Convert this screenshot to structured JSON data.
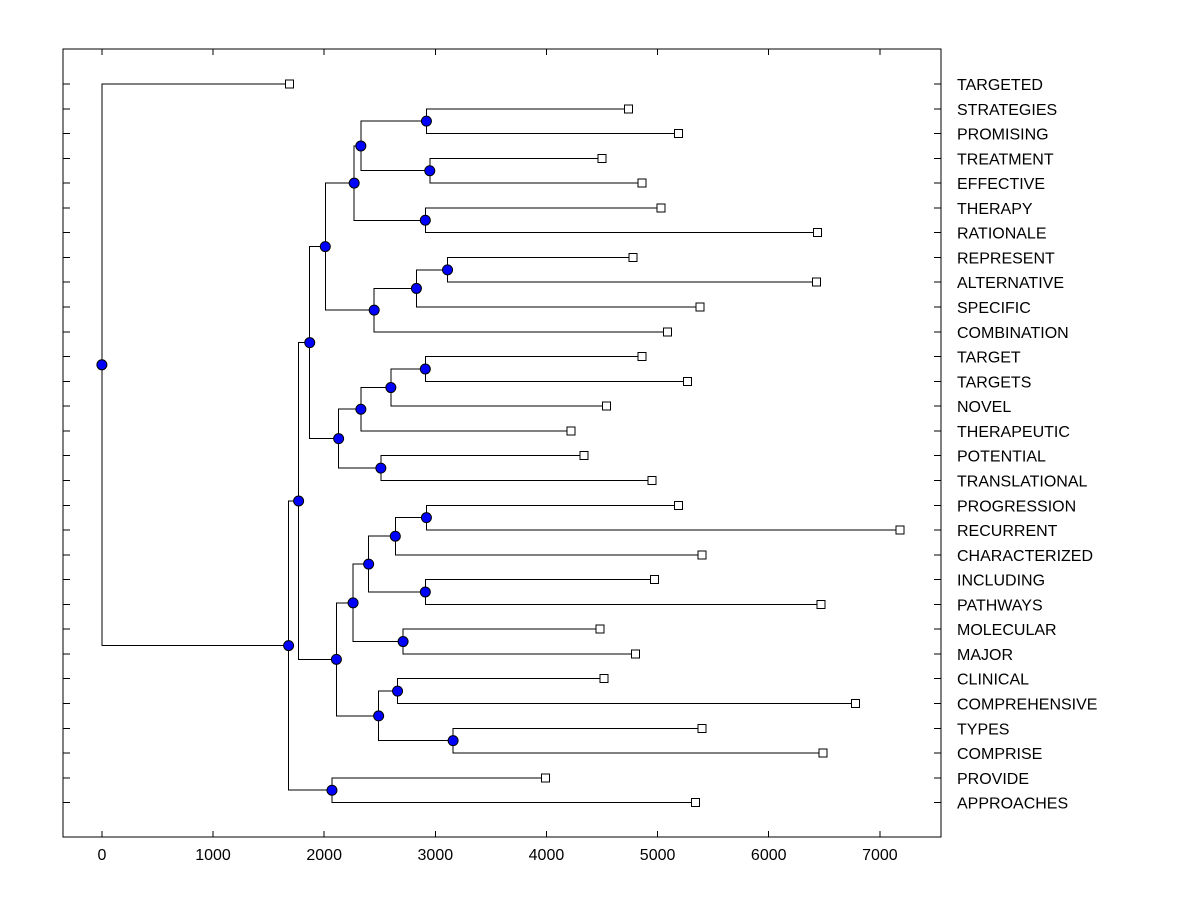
{
  "chart_data": {
    "type": "dendrogram",
    "title": "",
    "xlabel": "",
    "ylabel": "",
    "xlim": [
      -350,
      7550
    ],
    "xticks": [
      0,
      1000,
      2000,
      3000,
      4000,
      5000,
      6000,
      7000
    ],
    "leaves": [
      {
        "label": "TARGETED",
        "x": 1690
      },
      {
        "label": "STRATEGIES",
        "x": 4740
      },
      {
        "label": "PROMISING",
        "x": 5190
      },
      {
        "label": "TREATMENT",
        "x": 4500
      },
      {
        "label": "EFFECTIVE",
        "x": 4860
      },
      {
        "label": "THERAPY",
        "x": 5030
      },
      {
        "label": "RATIONALE",
        "x": 6440
      },
      {
        "label": "REPRESENT",
        "x": 4780
      },
      {
        "label": "ALTERNATIVE",
        "x": 6430
      },
      {
        "label": "SPECIFIC",
        "x": 5380
      },
      {
        "label": "COMBINATION",
        "x": 5090
      },
      {
        "label": "TARGET",
        "x": 4860
      },
      {
        "label": "TARGETS",
        "x": 5270
      },
      {
        "label": "NOVEL",
        "x": 4540
      },
      {
        "label": "THERAPEUTIC",
        "x": 4220
      },
      {
        "label": "POTENTIAL",
        "x": 4340
      },
      {
        "label": "TRANSLATIONAL",
        "x": 4950
      },
      {
        "label": "PROGRESSION",
        "x": 5190
      },
      {
        "label": "RECURRENT",
        "x": 7180
      },
      {
        "label": "CHARACTERIZED",
        "x": 5400
      },
      {
        "label": "INCLUDING",
        "x": 4970
      },
      {
        "label": "PATHWAYS",
        "x": 6470
      },
      {
        "label": "MOLECULAR",
        "x": 4480
      },
      {
        "label": "MAJOR",
        "x": 4800
      },
      {
        "label": "CLINICAL",
        "x": 4520
      },
      {
        "label": "COMPREHENSIVE",
        "x": 6780
      },
      {
        "label": "TYPES",
        "x": 5400
      },
      {
        "label": "COMPRISE",
        "x": 6490
      },
      {
        "label": "PROVIDE",
        "x": 3990
      },
      {
        "label": "APPROACHES",
        "x": 5340
      }
    ],
    "merges": [
      {
        "id": "n1",
        "x": 2920,
        "children": [
          "STRATEGIES",
          "PROMISING"
        ]
      },
      {
        "id": "n2",
        "x": 2950,
        "children": [
          "TREATMENT",
          "EFFECTIVE"
        ]
      },
      {
        "id": "n3",
        "x": 2330,
        "children": [
          "n1",
          "n2"
        ]
      },
      {
        "id": "n4",
        "x": 2910,
        "children": [
          "THERAPY",
          "RATIONALE"
        ]
      },
      {
        "id": "n5",
        "x": 2270,
        "children": [
          "n3",
          "n4"
        ]
      },
      {
        "id": "n6",
        "x": 3110,
        "children": [
          "REPRESENT",
          "ALTERNATIVE"
        ]
      },
      {
        "id": "n7",
        "x": 2830,
        "children": [
          "n6",
          "SPECIFIC"
        ]
      },
      {
        "id": "n8",
        "x": 2450,
        "children": [
          "n7",
          "COMBINATION"
        ]
      },
      {
        "id": "n9",
        "x": 2010,
        "children": [
          "n5",
          "n8"
        ]
      },
      {
        "id": "n10",
        "x": 2910,
        "children": [
          "TARGET",
          "TARGETS"
        ]
      },
      {
        "id": "n11",
        "x": 2600,
        "children": [
          "n10",
          "NOVEL"
        ]
      },
      {
        "id": "n12",
        "x": 2330,
        "children": [
          "n11",
          "THERAPEUTIC"
        ]
      },
      {
        "id": "n13",
        "x": 2510,
        "children": [
          "POTENTIAL",
          "TRANSLATIONAL"
        ]
      },
      {
        "id": "n14",
        "x": 2130,
        "children": [
          "n12",
          "n13"
        ]
      },
      {
        "id": "n15",
        "x": 1870,
        "children": [
          "n9",
          "n14"
        ]
      },
      {
        "id": "n16",
        "x": 2920,
        "children": [
          "PROGRESSION",
          "RECURRENT"
        ]
      },
      {
        "id": "n17",
        "x": 2640,
        "children": [
          "n16",
          "CHARACTERIZED"
        ]
      },
      {
        "id": "n18",
        "x": 2910,
        "children": [
          "INCLUDING",
          "PATHWAYS"
        ]
      },
      {
        "id": "n19",
        "x": 2400,
        "children": [
          "n17",
          "n18"
        ]
      },
      {
        "id": "n20",
        "x": 2710,
        "children": [
          "MOLECULAR",
          "MAJOR"
        ]
      },
      {
        "id": "n21",
        "x": 2260,
        "children": [
          "n19",
          "n20"
        ]
      },
      {
        "id": "n22",
        "x": 2660,
        "children": [
          "CLINICAL",
          "COMPREHENSIVE"
        ]
      },
      {
        "id": "n23",
        "x": 3160,
        "children": [
          "TYPES",
          "COMPRISE"
        ]
      },
      {
        "id": "n24",
        "x": 2490,
        "children": [
          "n22",
          "n23"
        ]
      },
      {
        "id": "n25",
        "x": 2110,
        "children": [
          "n21",
          "n24"
        ]
      },
      {
        "id": "n26",
        "x": 1770,
        "children": [
          "n15",
          "n25"
        ]
      },
      {
        "id": "n27",
        "x": 2070,
        "children": [
          "PROVIDE",
          "APPROACHES"
        ]
      },
      {
        "id": "n28",
        "x": 1680,
        "children": [
          "n26",
          "n27"
        ]
      },
      {
        "id": "n29",
        "x": 0,
        "children": [
          "TARGETED",
          "n28"
        ]
      }
    ]
  }
}
